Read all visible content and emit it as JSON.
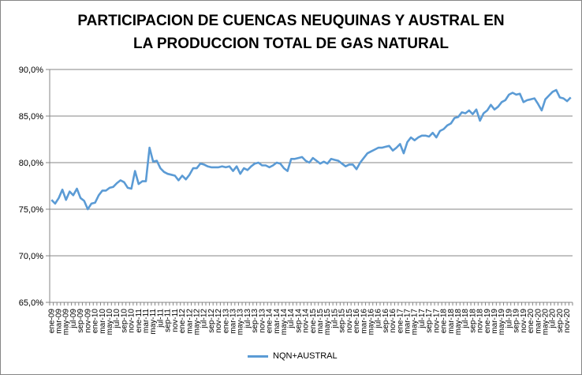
{
  "chart_data": {
    "type": "line",
    "title_lines": [
      "PARTICIPACION DE CUENCAS NEUQUINAS Y AUSTRAL EN",
      "LA PRODUCCION TOTAL DE GAS NATURAL"
    ],
    "xlabel": "",
    "ylabel": "",
    "ylim": [
      65,
      90
    ],
    "y_ticks": [
      "65,0%",
      "70,0%",
      "75,0%",
      "80,0%",
      "85,0%",
      "90,0%"
    ],
    "grid": "horizontal",
    "legend": "bottom",
    "color": "#5b9bd5",
    "x_tick_labels": [
      "ene-09",
      "mar-09",
      "may-09",
      "jul-09",
      "sep-09",
      "nov-09",
      "ene-10",
      "mar-10",
      "may-10",
      "jul-10",
      "sep-10",
      "nov-10",
      "ene-11",
      "mar-11",
      "may-11",
      "jul-11",
      "sep-11",
      "nov-11",
      "ene-12",
      "mar-12",
      "may-12",
      "jul-12",
      "sep-12",
      "nov-12",
      "ene-13",
      "mar-13",
      "may-13",
      "jul-13",
      "sep-13",
      "nov-13",
      "ene-14",
      "mar-14",
      "may-14",
      "jul-14",
      "sep-14",
      "nov-14",
      "ene-15",
      "mar-15",
      "may-15",
      "jul-15",
      "sep-15",
      "nov-15",
      "ene-16",
      "mar-16",
      "may-16",
      "jul-16",
      "sep-16",
      "nov-16",
      "ene-17",
      "mar-17",
      "may-17",
      "jul-17",
      "sep-17",
      "nov-17",
      "ene-18",
      "mar-18",
      "may-18",
      "jul-18",
      "sep-18",
      "nov-18",
      "ene-19",
      "mar-19",
      "may-19",
      "jul-19",
      "sep-19",
      "nov-19",
      "ene-20",
      "mar-20",
      "may-20",
      "jul-20",
      "sep-20",
      "nov-20"
    ],
    "series": [
      {
        "name": "NQN+AUSTRAL",
        "values": [
          76.0,
          75.6,
          76.2,
          77.1,
          76.0,
          76.9,
          76.5,
          77.2,
          76.2,
          75.9,
          75.0,
          75.6,
          75.7,
          76.5,
          77.0,
          77.0,
          77.3,
          77.4,
          77.8,
          78.1,
          77.9,
          77.3,
          77.2,
          79.1,
          77.7,
          78.0,
          78.0,
          81.6,
          80.1,
          80.2,
          79.4,
          79.0,
          78.8,
          78.7,
          78.6,
          78.1,
          78.6,
          78.2,
          78.7,
          79.4,
          79.4,
          79.9,
          79.8,
          79.6,
          79.5,
          79.5,
          79.5,
          79.6,
          79.5,
          79.6,
          79.1,
          79.6,
          78.8,
          79.4,
          79.2,
          79.6,
          79.9,
          80.0,
          79.7,
          79.7,
          79.5,
          79.7,
          80.0,
          79.9,
          79.4,
          79.1,
          80.4,
          80.4,
          80.5,
          80.6,
          80.2,
          80.0,
          80.5,
          80.2,
          79.9,
          80.1,
          79.9,
          80.4,
          80.3,
          80.2,
          79.9,
          79.6,
          79.8,
          79.8,
          79.3,
          80.0,
          80.5,
          81.0,
          81.2,
          81.4,
          81.6,
          81.6,
          81.7,
          81.8,
          81.3,
          81.6,
          82.0,
          81.0,
          82.2,
          82.7,
          82.4,
          82.7,
          82.9,
          82.9,
          82.8,
          83.2,
          82.7,
          83.4,
          83.6,
          84.0,
          84.2,
          84.8,
          84.9,
          85.4,
          85.3,
          85.6,
          85.2,
          85.7,
          84.5,
          85.3,
          85.6,
          86.2,
          85.7,
          86.0,
          86.5,
          86.7,
          87.3,
          87.5,
          87.3,
          87.4,
          86.5,
          86.7,
          86.8,
          86.9,
          86.3,
          85.6,
          86.8,
          87.2,
          87.6,
          87.8,
          87.0,
          86.9,
          86.6,
          87.0
        ]
      }
    ]
  }
}
